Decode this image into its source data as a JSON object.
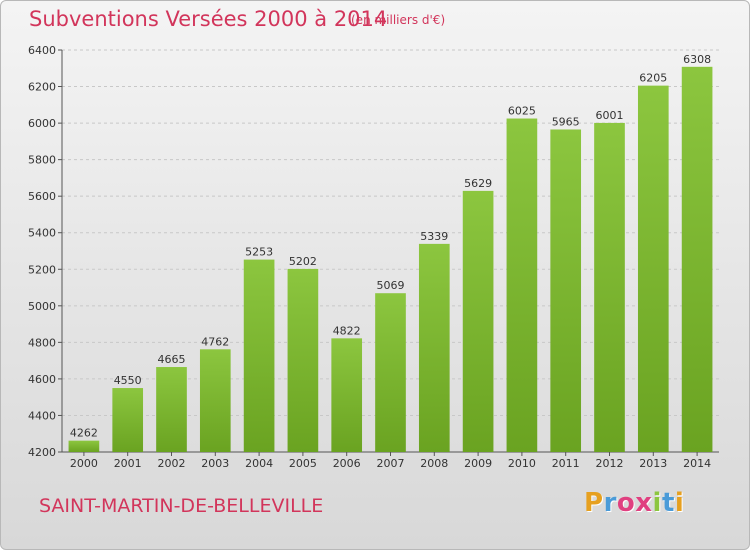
{
  "header": {
    "title": "Subventions Versées 2000 à 2014",
    "subtitle": "(en milliers d'€)"
  },
  "footer": {
    "commune": "SAINT-MARTIN-DE-BELLEVILLE",
    "logo_text": "Proxiti",
    "logo_letters": [
      "P",
      "r",
      "o",
      "x",
      "i",
      "t",
      "i"
    ],
    "logo_colors": [
      "#e6a020",
      "#4a9bd8",
      "#e04080",
      "#e04080",
      "#8cc63f",
      "#4a9bd8",
      "#e6a020"
    ]
  },
  "chart_data": {
    "type": "bar",
    "title": "Subventions Versées 2000 à 2014",
    "subtitle": "(en milliers d'€)",
    "categories": [
      "2000",
      "2001",
      "2002",
      "2003",
      "2004",
      "2005",
      "2006",
      "2007",
      "2008",
      "2009",
      "2010",
      "2011",
      "2012",
      "2013",
      "2014"
    ],
    "values": [
      4262,
      4550,
      4665,
      4762,
      5253,
      5202,
      4822,
      5069,
      5339,
      5629,
      6025,
      5965,
      6001,
      6205,
      6308
    ],
    "ylim": [
      4200,
      6400
    ],
    "yticks": [
      4200,
      4400,
      4600,
      4800,
      5000,
      5200,
      5400,
      5600,
      5800,
      6000,
      6200,
      6400
    ],
    "grid": true,
    "bar_color": "#8cc63f",
    "bar_color_dark": "#6aa321"
  }
}
